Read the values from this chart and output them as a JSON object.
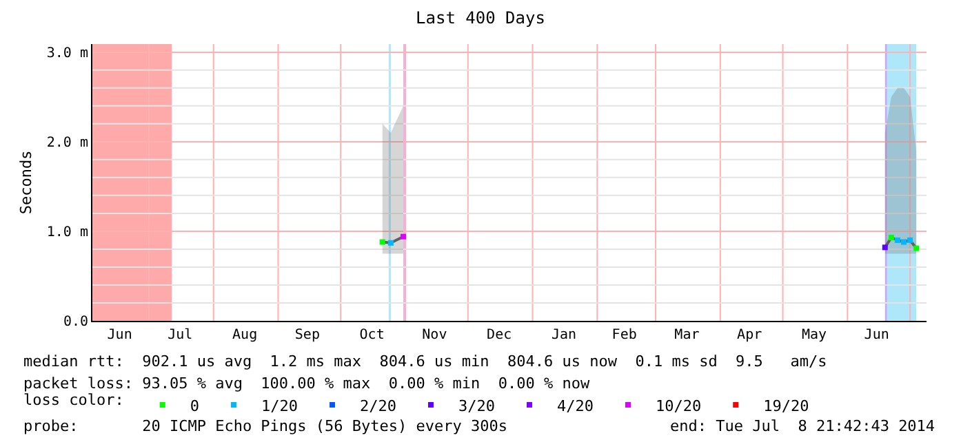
{
  "chart_data": {
    "type": "line",
    "title": "Last 400 Days",
    "ylabel": "Seconds",
    "legend_title": "loss color:",
    "xlim": [
      "2013-06-03T21:42",
      "2014-07-08T21:42"
    ],
    "xticks": [
      {
        "value": "2013-06-17",
        "label": "Jun"
      },
      {
        "value": "2013-07-01",
        "label": null
      },
      {
        "value": "2013-07-16",
        "label": "Jul"
      },
      {
        "value": "2013-08-01",
        "label": null
      },
      {
        "value": "2013-08-16",
        "label": "Aug"
      },
      {
        "value": "2013-09-01",
        "label": null
      },
      {
        "value": "2013-09-15",
        "label": "Sep"
      },
      {
        "value": "2013-10-01",
        "label": null
      },
      {
        "value": "2013-10-16",
        "label": "Oct"
      },
      {
        "value": "2013-11-01",
        "label": null
      },
      {
        "value": "2013-11-15",
        "label": "Nov"
      },
      {
        "value": "2013-12-01",
        "label": null
      },
      {
        "value": "2013-12-16",
        "label": "Dec"
      },
      {
        "value": "2014-01-01",
        "label": null
      },
      {
        "value": "2014-01-16",
        "label": "Jan"
      },
      {
        "value": "2014-02-01",
        "label": null
      },
      {
        "value": "2014-02-14",
        "label": "Feb"
      },
      {
        "value": "2014-03-01",
        "label": null
      },
      {
        "value": "2014-03-16",
        "label": "Mar"
      },
      {
        "value": "2014-04-01",
        "label": null
      },
      {
        "value": "2014-04-15",
        "label": "Apr"
      },
      {
        "value": "2014-05-01",
        "label": null
      },
      {
        "value": "2014-05-16",
        "label": "May"
      },
      {
        "value": "2014-06-01",
        "label": null
      },
      {
        "value": "2014-06-15",
        "label": "Jun"
      },
      {
        "value": "2014-07-01",
        "label": null
      }
    ],
    "ylim": [
      0,
      3.09
    ],
    "yticks": [
      {
        "value": 0,
        "label": "0.0"
      },
      {
        "value": 0.2,
        "label": null
      },
      {
        "value": 0.4,
        "label": null
      },
      {
        "value": 0.6,
        "label": null
      },
      {
        "value": 0.8,
        "label": null
      },
      {
        "value": 1,
        "label": "1.0 m"
      },
      {
        "value": 1.2,
        "label": null
      },
      {
        "value": 1.4,
        "label": null
      },
      {
        "value": 1.6,
        "label": null
      },
      {
        "value": 1.8,
        "label": null
      },
      {
        "value": 2,
        "label": "2.0 m"
      },
      {
        "value": 2.2,
        "label": null
      },
      {
        "value": 2.4,
        "label": null
      },
      {
        "value": 2.6,
        "label": null
      },
      {
        "value": 2.8,
        "label": null
      },
      {
        "value": 3,
        "label": "3.0 m"
      }
    ],
    "grid": true,
    "legend": "bottom",
    "x": [
      "2013-10-21",
      "2013-10-25",
      "2013-10-31",
      "2014-01-01",
      "2014-06-19",
      "2014-06-22",
      "2014-06-25",
      "2014-06-28",
      "2014-07-01",
      "2014-07-04"
    ],
    "bands": [
      {
        "axis": "x",
        "from": "2013-06-03T21:42",
        "to": "2013-07-12",
        "color": "#ffaaaa"
      },
      {
        "axis": "x",
        "from": "2013-10-24",
        "to": "2013-10-25",
        "color": "#aee6fa"
      },
      {
        "axis": "x",
        "from": "2013-10-31",
        "to": "2013-11-01",
        "color": "#eab0f4"
      },
      {
        "axis": "x",
        "from": "2014-06-19",
        "to": "2014-06-20",
        "color": "#c8a8f8"
      },
      {
        "axis": "x",
        "from": "2014-06-20",
        "to": "2014-07-04",
        "color": "#aee6fa"
      }
    ],
    "series": [
      {
        "color": "#606060",
        "values": [
          0.88,
          0.87,
          0.94,
          null,
          0.82,
          0.93,
          0.9,
          0.88,
          0.9,
          0.81
        ],
        "lower": [
          0.75,
          0.75,
          0.75,
          null,
          0.75,
          0.75,
          0.75,
          0.75,
          0.75,
          0.75
        ],
        "upper": [
          2.2,
          2.1,
          2.4,
          null,
          2.1,
          2.5,
          2.6,
          2.6,
          2.5,
          1.9
        ]
      },
      {
        "type": "scatter",
        "marker": "square",
        "name": "0",
        "color": "#00ff00",
        "values": [
          0.88,
          null,
          null,
          null,
          null,
          0.93,
          null,
          null,
          null,
          0.81
        ]
      },
      {
        "type": "scatter",
        "marker": "square",
        "name": "1/20",
        "color": "#00b8ff",
        "values": [
          null,
          0.87,
          null,
          null,
          null,
          null,
          0.9,
          0.88,
          0.9,
          null
        ]
      },
      {
        "type": "scatter",
        "marker": "square",
        "name": "2/20",
        "color": "#0059ff",
        "values": [
          null,
          null,
          null,
          null,
          null,
          null,
          null,
          null,
          null,
          null
        ]
      },
      {
        "type": "scatter",
        "marker": "square",
        "name": "3/20",
        "color": "#5e00ff",
        "values": [
          null,
          null,
          null,
          null,
          0.82,
          null,
          null,
          null,
          null,
          null
        ]
      },
      {
        "type": "scatter",
        "marker": "square",
        "name": "4/20",
        "color": "#7e00ff",
        "values": [
          null,
          null,
          null,
          null,
          null,
          null,
          null,
          null,
          null,
          null
        ]
      },
      {
        "type": "scatter",
        "marker": "square",
        "name": "10/20",
        "color": "#dd00ff",
        "values": [
          null,
          null,
          0.94,
          null,
          null,
          null,
          null,
          null,
          null,
          null
        ]
      },
      {
        "type": "scatter",
        "marker": "square",
        "name": "19/20",
        "color": "#ff0000",
        "values": [
          null,
          null,
          null,
          null,
          null,
          null,
          null,
          null,
          null,
          null
        ]
      }
    ],
    "annotations": [
      "median rtt:  902.1 us avg  1.2 ms max  804.6 us min  804.6 us now  0.1 ms sd  9.5   am/s",
      "packet loss: 93.05 % avg  100.00 % max  0.00 % min  0.00 % now",
      "probe:       20 ICMP Echo Pings (56 Bytes) every 300s",
      "end: Tue Jul  8 21:42:43 2014"
    ]
  }
}
